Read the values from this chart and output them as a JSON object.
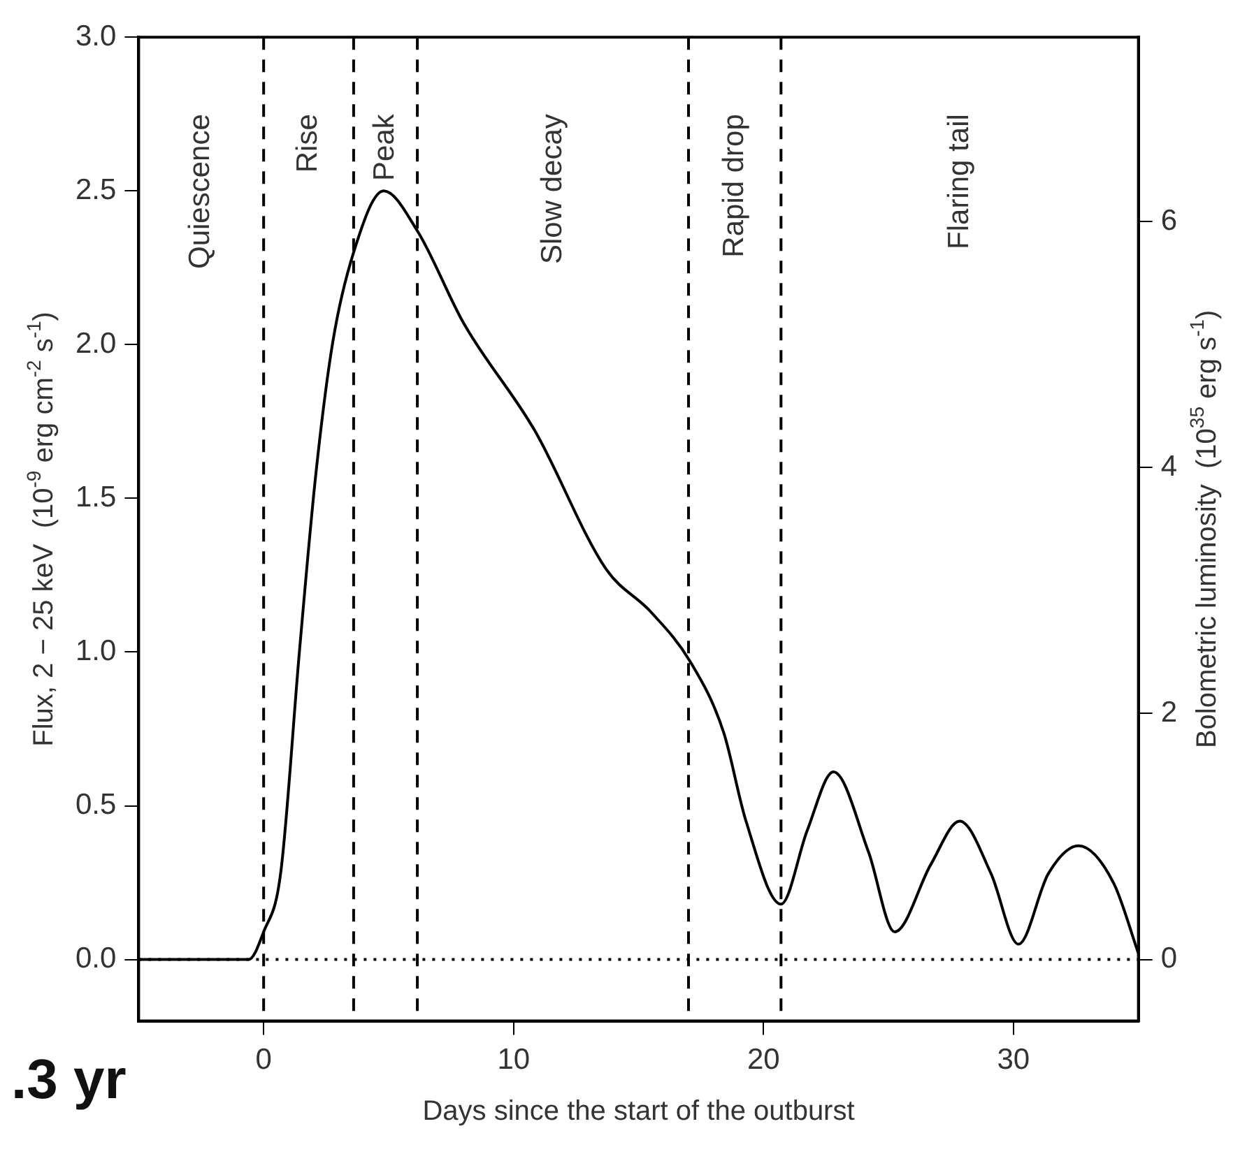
{
  "chart_data": {
    "type": "line",
    "xlabel": "Days since the start of the outburst",
    "ylabel": "Flux, 2 − 25 keV  (10$^{-9}$ erg cm$^{-2}$ s$^{-1}$)",
    "y2label": "Bolometric luminosity  (10$^{35}$ erg s$^{-1}$)",
    "x": [
      -5,
      -2,
      -0.6,
      0,
      0.68,
      1.43,
      2.09,
      2.77,
      3.6,
      4.8,
      6.15,
      8.0,
      10.85,
      13.7,
      15.5,
      17.06,
      18.4,
      19.3,
      20.7,
      21.75,
      22.8,
      24.2,
      25.25,
      26.7,
      27.85,
      29.1,
      30.2,
      31.4,
      32.6,
      34.0,
      35
    ],
    "series": [
      {
        "color": "#000000",
        "values": [
          0,
          0,
          0,
          0.09,
          0.28,
          1.0,
          1.58,
          2.01,
          2.3,
          2.5,
          2.37,
          2.07,
          1.72,
          1.27,
          1.13,
          0.97,
          0.74,
          0.45,
          0.18,
          0.42,
          0.61,
          0.35,
          0.09,
          0.31,
          0.45,
          0.28,
          0.05,
          0.28,
          0.37,
          0.25,
          0.02
        ]
      }
    ],
    "xlim": [
      -5,
      35
    ],
    "xticks": [
      0,
      10,
      20,
      30
    ],
    "ylim": [
      -0.2,
      3.0
    ],
    "yticks": [
      {
        "value": 0,
        "label": "0.0"
      },
      0.5,
      {
        "value": 1,
        "label": "1.0"
      },
      1.5,
      {
        "value": 2,
        "label": "2.0"
      },
      2.5,
      {
        "value": 3,
        "label": "3.0"
      }
    ],
    "y2lim": [
      -0.5,
      7.5
    ],
    "y2ticks": [
      0,
      2,
      4,
      6
    ],
    "ref_lines": [
      {
        "axis": "x",
        "value": 0,
        "color": "#000000",
        "line_style": "dashed"
      },
      {
        "axis": "x",
        "value": 3.6,
        "color": "#000000",
        "line_style": "dashed"
      },
      {
        "axis": "x",
        "value": 6.15,
        "color": "#000000",
        "line_style": "dashed"
      },
      {
        "axis": "x",
        "value": 17.0,
        "color": "#000000",
        "line_style": "dashed"
      },
      {
        "axis": "x",
        "value": 20.7,
        "color": "#000000",
        "line_style": "dashed"
      },
      {
        "axis": "y",
        "value": 0,
        "color": "#000000",
        "line_style": "dotted"
      }
    ],
    "annotations": [
      "Quiescence",
      "Rise",
      "Peak",
      "Slow decay",
      "Rapid drop",
      "Flaring tail",
      ".3 yr"
    ],
    "grid": false,
    "legend": false,
    "marker": "none",
    "line_style": "solid"
  }
}
